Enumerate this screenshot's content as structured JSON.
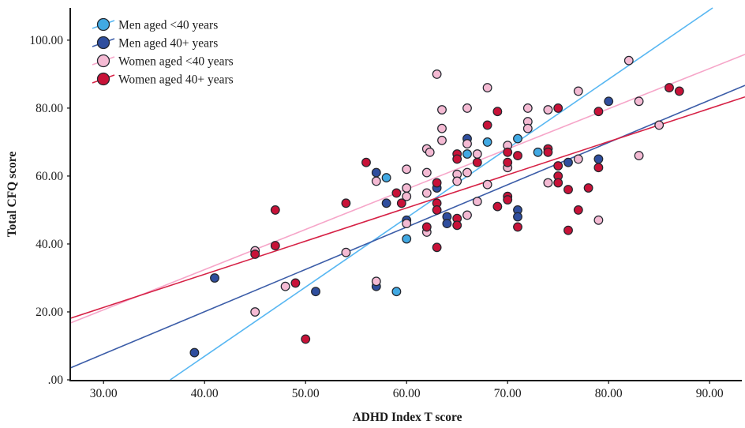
{
  "figure": {
    "xlabel": "ADHD Index T score",
    "ylabel": "Total CFQ score"
  },
  "chart_data": {
    "type": "scatter",
    "title": "",
    "xlabel": "ADHD Index T score",
    "ylabel": "Total CFQ score",
    "grid": false,
    "legend_position": "top-left-inside",
    "xlim": [
      26.7,
      93.5
    ],
    "ylim": [
      -0.23,
      109.5
    ],
    "x_ticks": [
      30,
      40,
      50,
      60,
      70,
      80,
      90
    ],
    "x_tick_labels": [
      "30.00",
      "40.00",
      "50.00",
      "60.00",
      "70.00",
      "80.00",
      "90.00"
    ],
    "y_ticks": [
      0,
      20,
      40,
      60,
      80,
      100
    ],
    "y_tick_labels": [
      ".00",
      "20.00",
      "40.00",
      "60.00",
      "80.00",
      "100.00"
    ],
    "axis_color": "#1a1a1a",
    "marker_stroke": "#23272e",
    "series": [
      {
        "name": "Men aged <40 years",
        "marker_color": "#41A9E3",
        "line_color": "#58B7F2",
        "fit_line": {
          "x1": 36.6,
          "y1": 0,
          "x2": 90.3,
          "y2": 109.5
        },
        "points": [
          [
            58,
            59.5
          ],
          [
            59,
            26
          ],
          [
            60,
            41.5
          ],
          [
            66,
            66.5
          ],
          [
            68,
            70
          ],
          [
            71,
            71
          ],
          [
            73,
            67
          ]
        ]
      },
      {
        "name": "Men aged 40+ years",
        "marker_color": "#2F4E9E",
        "line_color": "#3C5DA8",
        "fit_line": {
          "x1": 26.7,
          "y1": 3.5,
          "x2": 93.5,
          "y2": 86.7
        },
        "points": [
          [
            39,
            8
          ],
          [
            41,
            30
          ],
          [
            51,
            26
          ],
          [
            57,
            27.5
          ],
          [
            57,
            61
          ],
          [
            58,
            52
          ],
          [
            60,
            47
          ],
          [
            63,
            56.5
          ],
          [
            64,
            48
          ],
          [
            64,
            46
          ],
          [
            66,
            71
          ],
          [
            71,
            50
          ],
          [
            71,
            48
          ],
          [
            76,
            64
          ],
          [
            79,
            65
          ],
          [
            80,
            82
          ]
        ]
      },
      {
        "name": "Women aged <40 years",
        "marker_color": "#F4BAD3",
        "line_color": "#F6A6C9",
        "fit_line": {
          "x1": 26.7,
          "y1": 16.7,
          "x2": 93.5,
          "y2": 95.8
        },
        "points": [
          [
            45,
            38
          ],
          [
            45,
            20
          ],
          [
            48,
            27.5
          ],
          [
            54,
            37.5
          ],
          [
            57,
            58.5
          ],
          [
            57,
            29
          ],
          [
            60,
            62
          ],
          [
            60,
            56.5
          ],
          [
            60,
            54
          ],
          [
            60,
            46
          ],
          [
            62,
            61
          ],
          [
            62,
            55
          ],
          [
            62,
            43.5
          ],
          [
            62,
            68
          ],
          [
            62.3,
            67
          ],
          [
            63,
            90
          ],
          [
            63.5,
            79.5
          ],
          [
            63.5,
            74
          ],
          [
            63.5,
            70.5
          ],
          [
            65,
            60.5
          ],
          [
            65,
            58.5
          ],
          [
            66,
            61
          ],
          [
            66,
            69.5
          ],
          [
            66,
            80
          ],
          [
            66,
            48.5
          ],
          [
            67,
            66.5
          ],
          [
            67,
            52.5
          ],
          [
            68,
            86
          ],
          [
            68,
            57.5
          ],
          [
            70,
            69
          ],
          [
            70,
            62.5
          ],
          [
            72,
            80
          ],
          [
            72,
            76
          ],
          [
            72,
            74
          ],
          [
            74,
            79.5
          ],
          [
            74,
            58
          ],
          [
            77,
            85
          ],
          [
            77,
            65
          ],
          [
            79,
            47
          ],
          [
            82,
            94
          ],
          [
            83,
            82
          ],
          [
            83,
            66
          ],
          [
            85,
            75
          ]
        ]
      },
      {
        "name": "Women aged 40+ years",
        "marker_color": "#C81238",
        "line_color": "#D62246",
        "fit_line": {
          "x1": 26.7,
          "y1": 18.1,
          "x2": 93.5,
          "y2": 83.3
        },
        "points": [
          [
            45,
            37
          ],
          [
            47,
            50
          ],
          [
            47,
            39.5
          ],
          [
            49,
            28.5
          ],
          [
            50,
            12
          ],
          [
            54,
            52
          ],
          [
            56,
            64
          ],
          [
            59,
            55
          ],
          [
            59.5,
            52
          ],
          [
            62,
            45
          ],
          [
            63,
            58
          ],
          [
            63,
            52
          ],
          [
            63,
            50
          ],
          [
            63,
            39
          ],
          [
            65,
            66.5
          ],
          [
            65,
            65
          ],
          [
            65,
            47.5
          ],
          [
            65,
            45.5
          ],
          [
            67,
            64
          ],
          [
            68,
            75
          ],
          [
            69,
            79
          ],
          [
            69,
            51
          ],
          [
            70,
            67
          ],
          [
            70,
            64
          ],
          [
            70,
            54
          ],
          [
            70,
            53
          ],
          [
            71,
            66
          ],
          [
            71,
            45
          ],
          [
            74,
            68
          ],
          [
            74,
            67
          ],
          [
            75,
            80
          ],
          [
            75,
            63
          ],
          [
            75,
            60
          ],
          [
            75,
            58
          ],
          [
            76,
            56
          ],
          [
            76,
            44
          ],
          [
            77,
            50
          ],
          [
            78,
            56.5
          ],
          [
            79,
            79
          ],
          [
            79,
            62.5
          ],
          [
            86,
            86
          ],
          [
            87,
            85
          ]
        ]
      }
    ]
  }
}
